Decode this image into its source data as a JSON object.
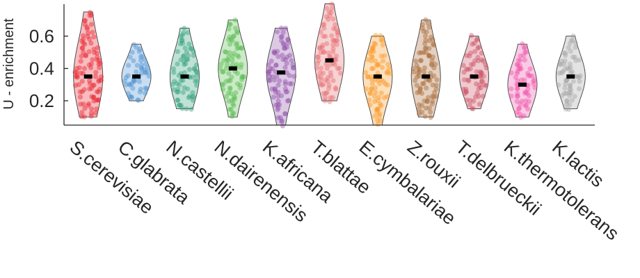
{
  "chart_data": {
    "type": "violin",
    "title": "",
    "xlabel": "",
    "ylabel": "U - enrichment",
    "ylim": [
      0.05,
      0.8
    ],
    "yticks": [
      0.2,
      0.4,
      0.6
    ],
    "ytick_labels": [
      "0.2",
      "0.4",
      "0.6"
    ],
    "grid": false,
    "categories": [
      "S.cerevisiae",
      "C.glabrata",
      "N.castellii",
      "N.dairenensis",
      "K.africana",
      "T.blattae",
      "E.cymbalariae",
      "Z.rouxii",
      "T.delbrueckii",
      "K.thermotolerans",
      "K.lactis"
    ],
    "series": [
      {
        "category": "S.cerevisiae",
        "color": "#e8202a",
        "median": 0.35,
        "min": 0.1,
        "max": 0.75
      },
      {
        "category": "C.glabrata",
        "color": "#4a8fd0",
        "median": 0.35,
        "min": 0.2,
        "max": 0.55
      },
      {
        "category": "N.castellii",
        "color": "#2e9e77",
        "median": 0.35,
        "min": 0.15,
        "max": 0.65
      },
      {
        "category": "N.dairenensis",
        "color": "#52b848",
        "median": 0.4,
        "min": 0.1,
        "max": 0.7
      },
      {
        "category": "K.africana",
        "color": "#8c4da6",
        "median": 0.375,
        "min": 0.05,
        "max": 0.65
      },
      {
        "category": "T.blattae",
        "color": "#e46a6d",
        "median": 0.45,
        "min": 0.2,
        "max": 0.8
      },
      {
        "category": "E.cymbalariae",
        "color": "#f7941d",
        "median": 0.35,
        "min": 0.05,
        "max": 0.6
      },
      {
        "category": "Z.rouxii",
        "color": "#a5652f",
        "median": 0.35,
        "min": 0.1,
        "max": 0.7
      },
      {
        "category": "T.delbrueckii",
        "color": "#c94c60",
        "median": 0.35,
        "min": 0.15,
        "max": 0.6
      },
      {
        "category": "K.thermotolerans",
        "color": "#ef4fa6",
        "median": 0.3,
        "min": 0.1,
        "max": 0.55
      },
      {
        "category": "K.lactis",
        "color": "#a3a3a3",
        "median": 0.35,
        "min": 0.15,
        "max": 0.6
      }
    ]
  }
}
